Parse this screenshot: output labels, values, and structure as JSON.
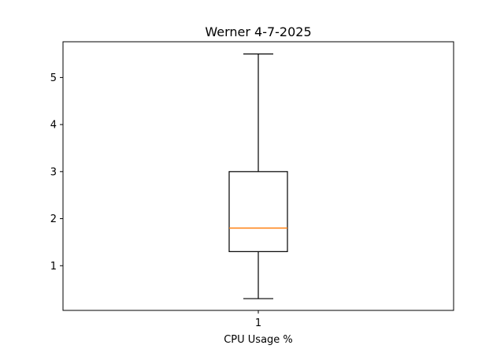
{
  "chart_data": {
    "type": "box",
    "title": "Werner 4-7-2025",
    "xlabel": "CPU Usage %",
    "ylabel": "",
    "categories": [
      "1"
    ],
    "boxes": [
      {
        "whisker_low": 0.3,
        "q1": 1.3,
        "median": 1.8,
        "q3": 3.0,
        "whisker_high": 5.5
      }
    ],
    "ylim": [
      0.05,
      5.76
    ],
    "yticks": [
      1,
      2,
      3,
      4,
      5
    ],
    "grid": false,
    "colors": {
      "box": "#000000",
      "median": "#ff7f0e",
      "axes": "#000000"
    }
  }
}
